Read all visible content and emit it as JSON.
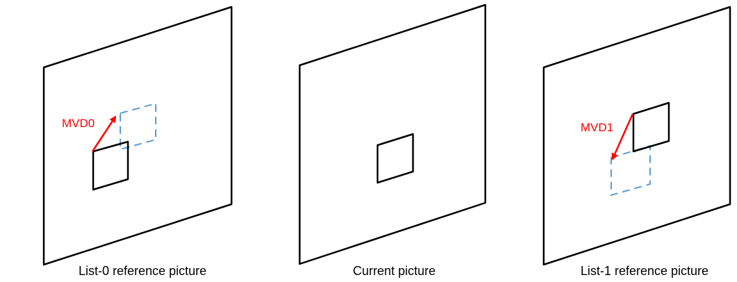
{
  "panels": [
    {
      "caption": "List-0 reference picture",
      "motion_vector_label": "MVD0"
    },
    {
      "caption": "Current picture"
    },
    {
      "caption": "List-1 reference picture",
      "motion_vector_label": "MVD1"
    }
  ],
  "colors": {
    "frame": "#000000",
    "block": "#000000",
    "motion_vector": "#ff0000",
    "reference_block": "#5b9bd5"
  }
}
